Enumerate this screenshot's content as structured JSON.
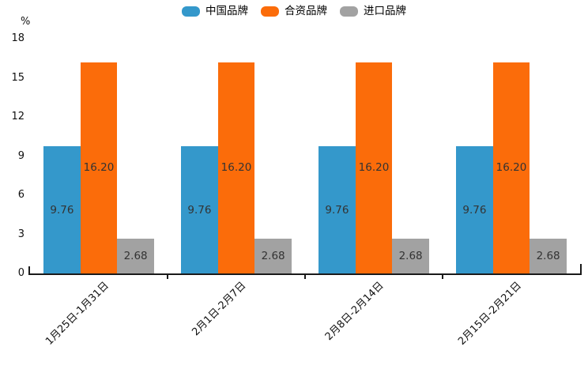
{
  "chart_data": {
    "type": "bar",
    "title": "",
    "unit_label": "%",
    "categories": [
      "1月25日-1月31日",
      "2月1日-2月7日",
      "2月8日-2月14日",
      "2月15日-2月21日"
    ],
    "series": [
      {
        "name": "中国品牌",
        "color": "#3498CB",
        "values": [
          9.76,
          9.76,
          9.76,
          9.76
        ]
      },
      {
        "name": "合资品牌",
        "color": "#FB6C0A",
        "values": [
          16.2,
          16.2,
          16.2,
          16.2
        ]
      },
      {
        "name": "进口品牌",
        "color": "#A2A2A2",
        "values": [
          2.68,
          2.68,
          2.68,
          2.68
        ]
      }
    ],
    "yticks": [
      0,
      3,
      6,
      9,
      12,
      15,
      18
    ],
    "ylim": [
      0,
      18
    ],
    "grid": false,
    "legend_position": "top-center",
    "value_labels": "two decimals, centered inside each bar",
    "xlabel_rotation_deg": 45,
    "axis_color": "#1a1a1a",
    "value_label_color": "#333333"
  }
}
